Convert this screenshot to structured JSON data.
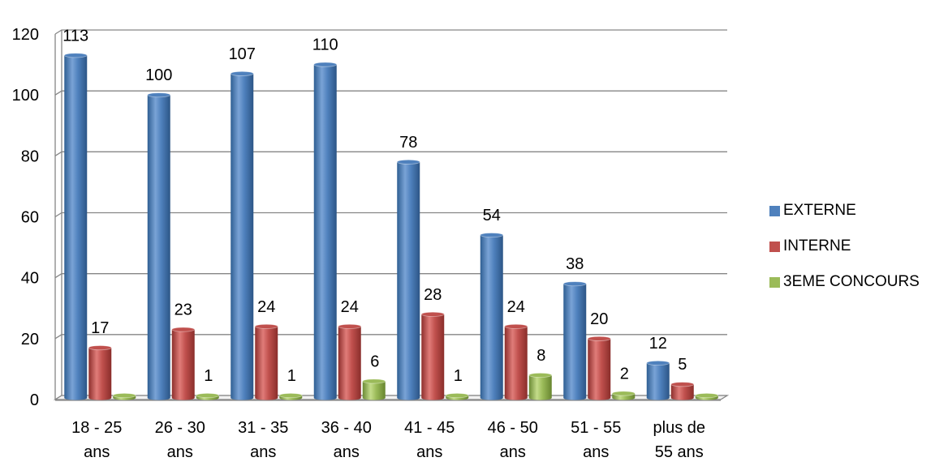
{
  "chart_data": {
    "type": "bar",
    "title": "",
    "xlabel": "",
    "ylabel": "",
    "ylim": [
      0,
      120
    ],
    "y_ticks": [
      "0",
      "20",
      "40",
      "60",
      "80",
      "100",
      "120"
    ],
    "grid": true,
    "legend_position": "right",
    "categories": [
      [
        "18 - 25",
        "ans"
      ],
      [
        "26 - 30",
        "ans"
      ],
      [
        "31 - 35",
        "ans"
      ],
      [
        "36 - 40",
        "ans"
      ],
      [
        "41 - 45",
        "ans"
      ],
      [
        "46 - 50",
        "ans"
      ],
      [
        "51 - 55",
        "ans"
      ],
      [
        "plus de",
        "55 ans"
      ]
    ],
    "series": [
      {
        "name": "EXTERNE",
        "color": "#4f81bd",
        "values": [
          113,
          100,
          107,
          110,
          78,
          54,
          38,
          12
        ],
        "labels": [
          "113",
          "100",
          "107",
          "110",
          "78",
          "54",
          "38",
          "12"
        ]
      },
      {
        "name": "INTERNE",
        "color": "#c0504d",
        "values": [
          17,
          23,
          24,
          24,
          28,
          24,
          20,
          5
        ],
        "labels": [
          "17",
          "23",
          "24",
          "24",
          "28",
          "24",
          "20",
          "5"
        ]
      },
      {
        "name": "3EME CONCOURS",
        "color": "#9bbb59",
        "values": [
          0,
          1,
          1,
          6,
          1,
          8,
          2,
          0
        ],
        "labels": [
          "",
          "1",
          "1",
          "6",
          "1",
          "8",
          "2",
          ""
        ]
      }
    ]
  },
  "legend": {
    "items": [
      {
        "label": "EXTERNE",
        "color": "#4f81bd"
      },
      {
        "label": "INTERNE",
        "color": "#c0504d"
      },
      {
        "label": "3EME CONCOURS",
        "color": "#9bbb59"
      }
    ]
  }
}
